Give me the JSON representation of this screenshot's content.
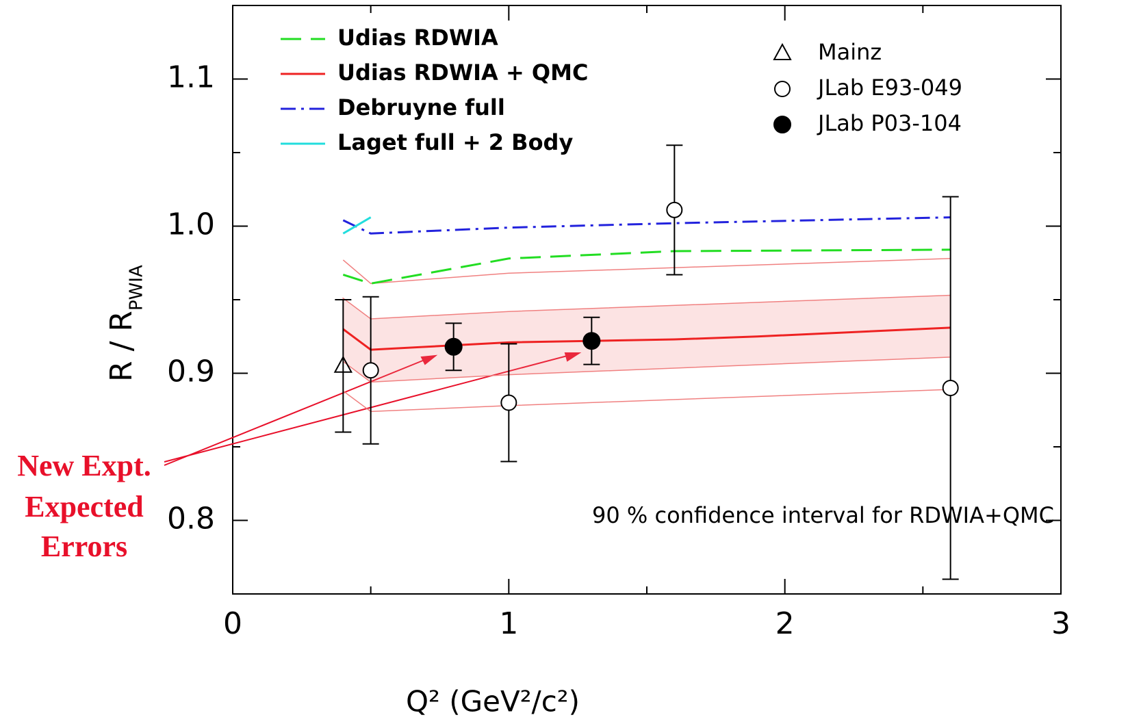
{
  "chart_data": {
    "type": "line",
    "xlabel": "Q² (GeV²/c²)",
    "ylabel": {
      "main": "R  /  R",
      "sub": "PWIA"
    },
    "xlim": [
      0,
      3
    ],
    "ylim": [
      0.75,
      1.15
    ],
    "xticks": [
      0,
      1,
      2,
      3
    ],
    "xminor": [
      0.5,
      1.5,
      2.5
    ],
    "yticks": [
      0.8,
      0.9,
      {
        "value": 1,
        "label": "1.0"
      },
      1.1
    ],
    "yminor": [
      0.75,
      0.85,
      0.95,
      1.05
    ],
    "series": [
      {
        "name": "Udias  RDWIA",
        "color": "#22dd22",
        "style": "dashed",
        "x": [
          0.4,
          0.5,
          1.0,
          1.6,
          2.6
        ],
        "values": [
          0.967,
          0.961,
          0.978,
          0.983,
          0.984
        ]
      },
      {
        "name": "Udias  RDWIA  +  QMC",
        "color": "#ee2222",
        "style": "solid",
        "x": [
          0.4,
          0.5,
          1.0,
          1.6,
          1.9,
          2.6
        ],
        "values": [
          0.93,
          0.916,
          0.921,
          0.923,
          0.925,
          0.931
        ]
      },
      {
        "name": "Debruyne  full",
        "color": "#2222dd",
        "style": "dash-dot",
        "x": [
          0.4,
          0.5,
          1.0,
          1.6,
          2.6
        ],
        "values": [
          1.004,
          0.995,
          0.999,
          1.002,
          1.006
        ]
      },
      {
        "name": "Laget  full  +  2  Body",
        "color": "#22dddd",
        "style": "solid",
        "x": [
          0.4,
          0.5
        ],
        "values": [
          0.995,
          1.006
        ]
      }
    ],
    "bands": [
      {
        "color": "#f08080",
        "fill": false,
        "x": [
          0.4,
          0.5,
          1.0,
          2.6
        ],
        "upper": [
          0.977,
          0.961,
          0.968,
          0.978
        ],
        "lower": [
          0.888,
          0.874,
          0.878,
          0.889
        ]
      },
      {
        "color": "#f08080",
        "fill": true,
        "x": [
          0.4,
          0.5,
          1.0,
          2.6
        ],
        "upper": [
          0.951,
          0.937,
          0.942,
          0.953
        ],
        "lower": [
          0.908,
          0.894,
          0.899,
          0.911
        ]
      }
    ],
    "points": [
      {
        "name": "Mainz",
        "marker": "triangle",
        "x": [
          0.4
        ],
        "values": [
          0.905
        ],
        "errors": [
          0.045
        ]
      },
      {
        "name": "JLab  E93-049",
        "marker": "open-circle",
        "x": [
          0.5,
          1.0,
          1.6,
          2.6
        ],
        "values": [
          0.902,
          0.88,
          1.011,
          0.89
        ],
        "errors": [
          0.05,
          0.04,
          0.044,
          0.13
        ]
      },
      {
        "name": "JLab  P03-104",
        "marker": "filled-circle",
        "x": [
          0.8,
          1.3
        ],
        "values": [
          0.918,
          0.922
        ],
        "errors": [
          0.016,
          0.016
        ]
      }
    ],
    "annotations": [
      "90 % confidence interval for RDWIA+QMC",
      "New Expt.",
      "Expected",
      "Errors"
    ]
  }
}
